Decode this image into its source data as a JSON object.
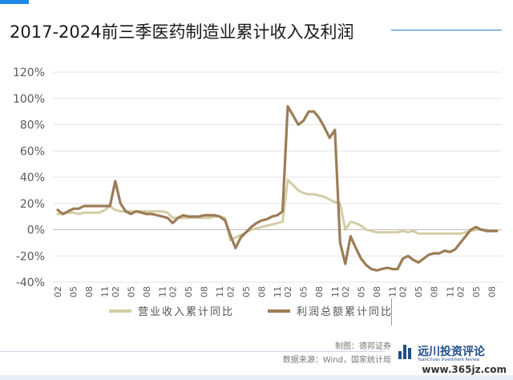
{
  "header": {
    "title": "2017-2024前三季医药制造业累计收入及利润"
  },
  "legend": {
    "revenue_label": "营业收入累计同比",
    "profit_label": "利润总额累计同比"
  },
  "footer": {
    "maker": "制图：德邦证券",
    "source": "数据来源：Wind，国家统计局",
    "logo_text": "远川投资评论",
    "logo_sub": "YuanChuan Investment Review",
    "watermark": "www.365jz.com"
  },
  "colors": {
    "revenue": "#d2cda5",
    "profit": "#9c7c56",
    "grid": "#e3e3e3",
    "axis_text": "#595959",
    "accent": "#1e88e5"
  },
  "chart_data": {
    "type": "line",
    "title": "2017-2024前三季医药制造业累计收入及利润",
    "xlabel": "",
    "ylabel": "",
    "ylim": [
      -40,
      120
    ],
    "yticks": [
      -40,
      -20,
      0,
      20,
      40,
      60,
      80,
      100,
      120
    ],
    "ytick_labels": [
      "-40%",
      "-20%",
      "0%",
      "20%",
      "40%",
      "60%",
      "80%",
      "100%",
      "120%"
    ],
    "grid": true,
    "legend_position": "bottom",
    "x": [
      "2017-02",
      "2017-03",
      "2017-04",
      "2017-05",
      "2017-06",
      "2017-07",
      "2017-08",
      "2017-09",
      "2017-10",
      "2017-11",
      "2017-12",
      "2018-02",
      "2018-03",
      "2018-04",
      "2018-05",
      "2018-06",
      "2018-07",
      "2018-08",
      "2018-09",
      "2018-10",
      "2018-11",
      "2018-12",
      "2019-02",
      "2019-03",
      "2019-04",
      "2019-05",
      "2019-06",
      "2019-07",
      "2019-08",
      "2019-09",
      "2019-10",
      "2019-11",
      "2019-12",
      "2020-02",
      "2020-03",
      "2020-04",
      "2020-05",
      "2020-06",
      "2020-07",
      "2020-08",
      "2020-09",
      "2020-10",
      "2020-11",
      "2020-12",
      "2021-02",
      "2021-03",
      "2021-04",
      "2021-05",
      "2021-06",
      "2021-07",
      "2021-08",
      "2021-09",
      "2021-10",
      "2021-11",
      "2021-12",
      "2022-02",
      "2022-03",
      "2022-04",
      "2022-05",
      "2022-06",
      "2022-07",
      "2022-08",
      "2022-09",
      "2022-10",
      "2022-11",
      "2022-12",
      "2023-02",
      "2023-03",
      "2023-04",
      "2023-05",
      "2023-06",
      "2023-07",
      "2023-08",
      "2023-09",
      "2023-10",
      "2023-11",
      "2023-12",
      "2024-02",
      "2024-03",
      "2024-04",
      "2024-05",
      "2024-06",
      "2024-07",
      "2024-08",
      "2024-09"
    ],
    "x_tick_labels": [
      "2017-02",
      "2017-05",
      "2017-08",
      "2017-11",
      "2018-02",
      "2018-05",
      "2018-08",
      "2018-11",
      "2019-02",
      "2019-05",
      "2019-08",
      "2019-11",
      "2020-02",
      "2020-05",
      "2020-08",
      "2020-11",
      "2021-02",
      "2021-05",
      "2021-08",
      "2021-11",
      "2022-02",
      "2022-05",
      "2022-08",
      "2022-11",
      "2023-02",
      "2023-05",
      "2023-08",
      "2023-11",
      "2024-02",
      "2024-05",
      "2024-08"
    ],
    "series": [
      {
        "name": "营业收入累计同比",
        "values": [
          12,
          12,
          13,
          13,
          12,
          13,
          13,
          13,
          13,
          15,
          18,
          15,
          14,
          14,
          14,
          14,
          14,
          14,
          14,
          14,
          14,
          13,
          9,
          9,
          9,
          9,
          9,
          9,
          9,
          9,
          10,
          10,
          9,
          -8,
          -6,
          -4,
          -2,
          0,
          1,
          2,
          3,
          4,
          5,
          6,
          38,
          34,
          30,
          28,
          27,
          27,
          26,
          25,
          23,
          21,
          20,
          0,
          6,
          5,
          3,
          0,
          -1,
          -2,
          -2,
          -2,
          -2,
          -2,
          -1,
          -2,
          -1,
          -3,
          -3,
          -3,
          -3,
          -3,
          -3,
          -3,
          -3,
          -3,
          -2,
          -1,
          0,
          0,
          0,
          -1,
          -1
        ]
      },
      {
        "name": "利润总额累计同比",
        "values": [
          15,
          12,
          14,
          16,
          16,
          18,
          18,
          18,
          18,
          18,
          18,
          37,
          20,
          14,
          12,
          14,
          13,
          12,
          12,
          11,
          10,
          9,
          5,
          9,
          11,
          10,
          10,
          10,
          11,
          11,
          11,
          10,
          7,
          -4,
          -14,
          -6,
          -2,
          2,
          5,
          7,
          8,
          10,
          11,
          14,
          94,
          87,
          80,
          83,
          90,
          90,
          85,
          78,
          70,
          76,
          -10,
          -26,
          -5,
          -14,
          -22,
          -27,
          -30,
          -31,
          -30,
          -29,
          -30,
          -30,
          -22,
          -20,
          -23,
          -25,
          -22,
          -19,
          -18,
          -18,
          -16,
          -17,
          -15,
          -10,
          -5,
          0,
          2,
          0,
          -1,
          -1,
          -1
        ]
      }
    ]
  }
}
